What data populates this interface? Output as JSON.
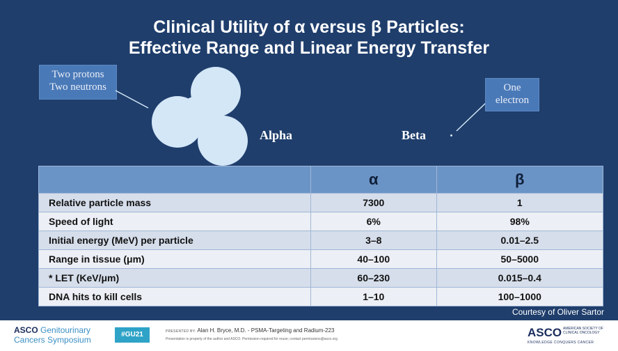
{
  "slide": {
    "title_line1": "Clinical Utility of α versus β Particles:",
    "title_line2": "Effective Range and Linear Energy Transfer",
    "alpha_callout_line1": "Two protons",
    "alpha_callout_line2": "Two neutrons",
    "beta_callout_line1": "One",
    "beta_callout_line2": "electron",
    "alpha_label": "Alpha",
    "beta_label": "Beta",
    "courtesy": "Courtesy of Oliver Sartor",
    "colors": {
      "background": "#1f3e6c",
      "header": "#6b94c6",
      "callout": "#4a79b8",
      "particle": "#d3e7f7"
    }
  },
  "table": {
    "headers": [
      "",
      "α",
      "β"
    ],
    "rows": [
      {
        "name": "Relative particle mass",
        "alpha": "7300",
        "beta": "1"
      },
      {
        "name": "Speed of light",
        "alpha": "6%",
        "beta": "98%"
      },
      {
        "name": "Initial energy (MeV) per particle",
        "alpha": "3–8",
        "beta": "0.01–2.5"
      },
      {
        "name": "Range in tissue (μm)",
        "alpha": "40–100",
        "beta": "50–5000"
      },
      {
        "name": "* LET (KeV/μm)",
        "alpha": "60–230",
        "beta": "0.015–0.4"
      },
      {
        "name": "DNA hits to kill cells",
        "alpha": "1–10",
        "beta": "100–1000"
      }
    ]
  },
  "footer": {
    "asco_brand": "ASCO",
    "symposium_word1": "Genitourinary",
    "symposium_line2": "Cancers Symposium",
    "hashtag": "#GU21",
    "presented_by": "PRESENTED BY:",
    "presenter": "Alan H. Bryce, M.D. - PSMA-Targeting and Radium-223",
    "notice": "Presentation is property of the author and ASCO. Permission required for reuse; contact permissions@asco.org",
    "asco_right": "ASCO",
    "asco_right_small": "AMERICAN SOCIETY OF CLINICAL ONCOLOGY",
    "tagline": "KNOWLEDGE CONQUERS CANCER"
  }
}
